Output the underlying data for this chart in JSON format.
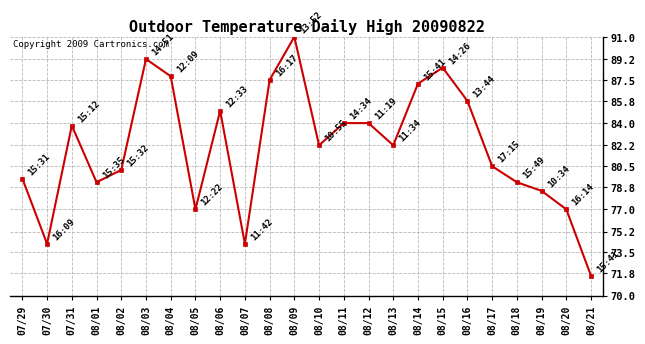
{
  "title": "Outdoor Temperature Daily High 20090822",
  "copyright": "Copyright 2009 Cartronics.com",
  "x_labels": [
    "07/29",
    "07/30",
    "07/31",
    "08/01",
    "08/02",
    "08/03",
    "08/04",
    "08/05",
    "08/06",
    "08/07",
    "08/08",
    "08/09",
    "08/10",
    "08/11",
    "08/12",
    "08/13",
    "08/14",
    "08/15",
    "08/16",
    "08/17",
    "08/18",
    "08/19",
    "08/20",
    "08/21"
  ],
  "y_values": [
    79.5,
    74.2,
    83.8,
    79.2,
    80.2,
    89.2,
    87.8,
    77.0,
    85.0,
    74.2,
    87.5,
    91.0,
    82.2,
    84.0,
    84.0,
    82.2,
    87.2,
    88.5,
    85.8,
    80.5,
    79.2,
    78.5,
    77.0,
    71.6
  ],
  "point_labels": [
    "15:31",
    "16:09",
    "15:12",
    "15:35",
    "15:32",
    "14:51",
    "12:09",
    "12:22",
    "12:33",
    "11:42",
    "16:17",
    "13:52",
    "10:55",
    "14:34",
    "11:19",
    "11:34",
    "15:41",
    "14:26",
    "13:44",
    "17:15",
    "15:49",
    "10:34",
    "16:14",
    "15:41"
  ],
  "line_color": "#cc0000",
  "marker_color": "#cc0000",
  "bg_color": "#ffffff",
  "grid_color": "#b0b0b0",
  "ylim": [
    70.0,
    91.0
  ],
  "yticks": [
    70.0,
    71.8,
    73.5,
    75.2,
    77.0,
    78.8,
    80.5,
    82.2,
    84.0,
    85.8,
    87.5,
    89.2,
    91.0
  ],
  "title_fontsize": 11,
  "label_fontsize": 7.5
}
